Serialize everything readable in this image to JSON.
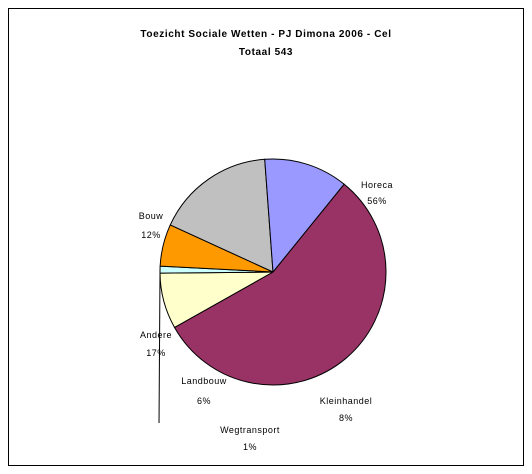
{
  "chart_data": {
    "type": "pie",
    "title": "Toezicht Sociale Wetten - PJ Dimona 2006 - Cel",
    "subtitle": "Totaal 543",
    "slices": [
      {
        "label": "Horeca",
        "percent_label": "56%",
        "value": 56,
        "color": "#993366"
      },
      {
        "label": "Kleinhandel",
        "percent_label": "8%",
        "value": 8,
        "color": "#ffffcc"
      },
      {
        "label": "Wegtransport",
        "percent_label": "1%",
        "value": 1,
        "color": "#ccffff"
      },
      {
        "label": "Landbouw",
        "percent_label": "6%",
        "value": 6,
        "color": "#ff9900"
      },
      {
        "label": "Andere",
        "percent_label": "17%",
        "value": 17,
        "color": "#c0c0c0"
      },
      {
        "label": "Bouw",
        "percent_label": "12%",
        "value": 12,
        "color": "#9999ff"
      }
    ],
    "start_angle_deg": -51,
    "direction": "clockwise",
    "legend": "none"
  }
}
